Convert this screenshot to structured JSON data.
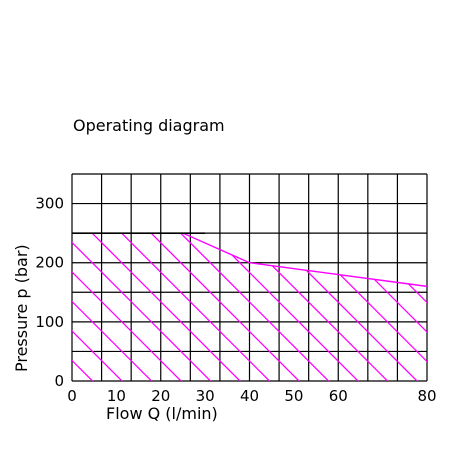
{
  "chart_data": {
    "type": "area",
    "title": "Operating diagram",
    "xlabel": "Flow Q (l/min)",
    "ylabel": "Pressure p (bar)",
    "xlim": [
      0,
      80
    ],
    "ylim": [
      0,
      350
    ],
    "x_ticks": [
      0,
      10,
      20,
      30,
      40,
      50,
      60,
      80
    ],
    "y_ticks": [
      0,
      100,
      200,
      300
    ],
    "grid": true,
    "series": [
      {
        "color": "#ff00ff",
        "x": [
          0,
          25,
          40,
          60,
          80
        ],
        "y": [
          250,
          250,
          200,
          180,
          160
        ]
      }
    ]
  }
}
